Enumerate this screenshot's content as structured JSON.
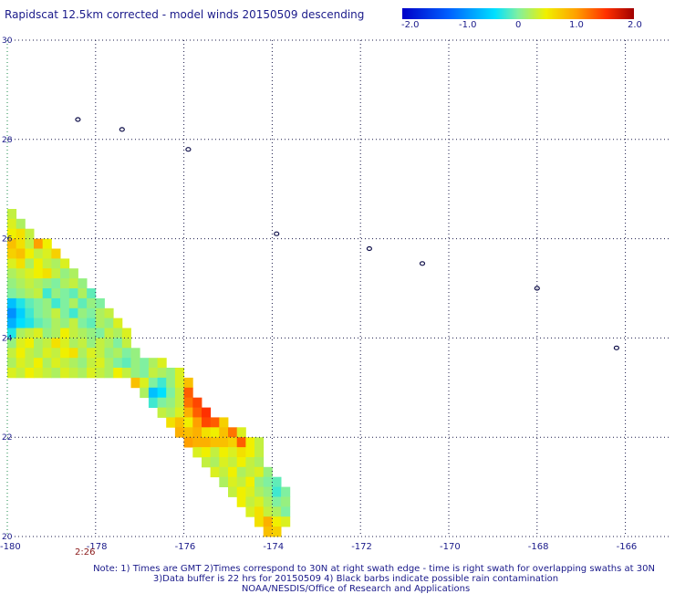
{
  "title": "Rapidscat 12.5km corrected - model winds 20150509 descending",
  "colorbar": {
    "tick_labels": [
      "-2.0",
      "-1.0",
      "0",
      "1.0",
      "2.0"
    ],
    "tick_values": [
      -2.0,
      -1.0,
      0,
      1.0,
      2.0
    ],
    "min": -2.0,
    "max": 2.0,
    "colors": [
      "#0000c8",
      "#0060ff",
      "#00d8ff",
      "#40f0c0",
      "#a8f060",
      "#f0f000",
      "#ffa000",
      "#ff3000",
      "#a00000"
    ]
  },
  "time_label": "2:26",
  "notes": [
    "Note: 1) Times are GMT 2)Times correspond to 30N at right swath edge - time is right swath for overlapping swaths at 30N",
    "3)Data buffer is 22 hrs for 20150509 4) Black barbs indicate possible rain contamination",
    "NOAA/NESDIS/Office of Research and Applications"
  ],
  "chart_data": {
    "type": "heatmap",
    "x_axis": {
      "range": [
        -180,
        -165
      ],
      "tick_labels": [
        "-180",
        "-178",
        "-176",
        "-174",
        "-172",
        "-170",
        "-168",
        "-166"
      ],
      "ticks": [
        -180,
        -178,
        -176,
        -174,
        -172,
        -170,
        -168,
        -166
      ]
    },
    "y_axis": {
      "range": [
        20,
        30
      ],
      "tick_labels": [
        "20",
        "22",
        "24",
        "26",
        "28",
        "30"
      ],
      "ticks": [
        20,
        22,
        24,
        26,
        28,
        30
      ]
    },
    "grid": "dotted",
    "cell_size_deg": 0.2,
    "swath_rows": [
      {
        "lat": 26.4,
        "lon_start": -180.0,
        "values": [
          0.3
        ]
      },
      {
        "lat": 26.2,
        "lon_start": -180.0,
        "values": [
          0.4,
          0.2
        ]
      },
      {
        "lat": 26.0,
        "lon_start": -180.0,
        "values": [
          0.5,
          0.6,
          0.3
        ]
      },
      {
        "lat": 25.8,
        "lon_start": -180.0,
        "values": [
          0.8,
          0.6,
          0.3,
          1.0,
          0.5
        ]
      },
      {
        "lat": 25.6,
        "lon_start": -180.0,
        "values": [
          0.7,
          0.8,
          0.5,
          0.3,
          0.4,
          0.7
        ]
      },
      {
        "lat": 25.4,
        "lon_start": -180.0,
        "values": [
          0.4,
          0.6,
          0.2,
          0.5,
          0.3,
          0.2,
          0.4
        ]
      },
      {
        "lat": 25.2,
        "lon_start": -180.0,
        "values": [
          0.2,
          0.3,
          0.4,
          0.5,
          0.6,
          0.3,
          0.1,
          0.2
        ]
      },
      {
        "lat": 25.0,
        "lon_start": -180.0,
        "values": [
          0.1,
          0.2,
          0.3,
          0.2,
          0.1,
          0.0,
          0.2,
          0.3,
          0.1
        ]
      },
      {
        "lat": 24.8,
        "lon_start": -180.0,
        "values": [
          0.0,
          0.1,
          0.2,
          0.3,
          -0.2,
          0.1,
          0.0,
          -0.1,
          0.2,
          -0.1
        ]
      },
      {
        "lat": 24.6,
        "lon_start": -180.0,
        "values": [
          -0.6,
          -0.3,
          -0.1,
          0.0,
          0.1,
          -0.2,
          0.0,
          0.2,
          -0.1,
          0.1,
          0.0
        ]
      },
      {
        "lat": 24.4,
        "lon_start": -180.0,
        "values": [
          -0.9,
          -0.5,
          -0.2,
          0.0,
          0.1,
          0.3,
          0.0,
          -0.2,
          0.1,
          0.0,
          0.2,
          0.3
        ]
      },
      {
        "lat": 24.2,
        "lon_start": -180.0,
        "values": [
          -0.7,
          -0.4,
          -0.3,
          -0.1,
          0.0,
          0.2,
          0.1,
          0.3,
          0.0,
          -0.1,
          0.2,
          0.1,
          0.4
        ]
      },
      {
        "lat": 24.0,
        "lon_start": -180.0,
        "values": [
          -0.3,
          0.2,
          0.3,
          0.4,
          0.1,
          0.2,
          0.5,
          0.3,
          0.2,
          0.1,
          0.0,
          0.3,
          0.2,
          0.4
        ]
      },
      {
        "lat": 23.8,
        "lon_start": -180.0,
        "values": [
          0.1,
          0.4,
          0.5,
          0.2,
          0.3,
          0.6,
          0.4,
          0.2,
          0.3,
          0.1,
          0.3,
          0.2,
          0.0,
          0.3
        ]
      },
      {
        "lat": 23.6,
        "lon_start": -180.0,
        "values": [
          0.3,
          0.5,
          0.3,
          0.2,
          0.4,
          0.3,
          0.5,
          0.6,
          0.2,
          0.4,
          0.3,
          0.1,
          0.2,
          0.0,
          0.1
        ]
      },
      {
        "lat": 23.4,
        "lon_start": -180.0,
        "values": [
          0.2,
          0.4,
          0.3,
          0.5,
          0.2,
          0.4,
          0.3,
          0.2,
          0.1,
          0.3,
          0.4,
          0.2,
          0.0,
          -0.1,
          0.1,
          0.0,
          0.2,
          0.4
        ]
      },
      {
        "lat": 23.2,
        "lon_start": -180.0,
        "values": [
          0.4,
          0.3,
          0.5,
          0.4,
          0.3,
          0.2,
          0.4,
          0.3,
          0.2,
          0.4,
          0.3,
          0.2,
          0.5,
          0.3,
          0.1,
          0.0,
          0.3,
          0.2,
          0.1,
          0.4
        ]
      },
      {
        "lat": 23.0,
        "lon_start": -177.2,
        "values": [
          0.8,
          0.4,
          0.0,
          -0.2,
          0.1,
          0.4,
          0.8
        ]
      },
      {
        "lat": 22.8,
        "lon_start": -177.0,
        "values": [
          0.2,
          -0.6,
          -0.4,
          0.0,
          0.3,
          1.3
        ]
      },
      {
        "lat": 22.6,
        "lon_start": -176.8,
        "values": [
          -0.2,
          0.0,
          0.1,
          0.3,
          1.2,
          1.4
        ]
      },
      {
        "lat": 22.4,
        "lon_start": -176.6,
        "values": [
          0.3,
          0.2,
          0.4,
          0.9,
          1.3,
          1.5
        ]
      },
      {
        "lat": 22.2,
        "lon_start": -176.4,
        "values": [
          0.6,
          0.8,
          0.5,
          1.0,
          1.4,
          1.3,
          0.7
        ]
      },
      {
        "lat": 22.0,
        "lon_start": -176.2,
        "values": [
          0.9,
          0.8,
          0.9,
          0.6,
          0.5,
          0.8,
          1.2,
          0.4
        ]
      },
      {
        "lat": 21.8,
        "lon_start": -176.0,
        "values": [
          1.0,
          0.9,
          0.9,
          0.8,
          0.8,
          0.7,
          1.3,
          0.5,
          0.3
        ]
      },
      {
        "lat": 21.6,
        "lon_start": -175.8,
        "values": [
          0.4,
          0.5,
          0.3,
          0.5,
          0.4,
          0.6,
          0.5,
          0.3
        ]
      },
      {
        "lat": 21.4,
        "lon_start": -175.6,
        "values": [
          0.3,
          0.2,
          0.4,
          0.3,
          0.5,
          0.3,
          0.2
        ]
      },
      {
        "lat": 21.2,
        "lon_start": -175.4,
        "values": [
          0.4,
          0.3,
          0.5,
          0.2,
          0.3,
          0.4,
          0.1
        ]
      },
      {
        "lat": 21.0,
        "lon_start": -175.2,
        "values": [
          0.2,
          0.4,
          0.3,
          0.5,
          0.1,
          0.0,
          -0.1
        ]
      },
      {
        "lat": 20.8,
        "lon_start": -175.0,
        "values": [
          0.3,
          0.5,
          0.4,
          0.2,
          0.1,
          -0.2,
          0.0
        ]
      },
      {
        "lat": 20.6,
        "lon_start": -174.8,
        "values": [
          0.5,
          0.3,
          0.4,
          0.2,
          0.0,
          0.1
        ]
      },
      {
        "lat": 20.4,
        "lon_start": -174.6,
        "values": [
          0.4,
          0.6,
          0.3,
          0.2,
          0.0
        ]
      },
      {
        "lat": 20.2,
        "lon_start": -174.4,
        "values": [
          0.6,
          0.9,
          0.5,
          0.4
        ]
      },
      {
        "lat": 20.0,
        "lon_start": -174.2,
        "values": [
          0.8,
          0.7
        ]
      }
    ],
    "islands": [
      {
        "lon": -178.4,
        "lat": 28.4
      },
      {
        "lon": -177.4,
        "lat": 28.2
      },
      {
        "lon": -175.9,
        "lat": 27.8
      },
      {
        "lon": -173.9,
        "lat": 26.1
      },
      {
        "lon": -171.8,
        "lat": 25.8
      },
      {
        "lon": -170.6,
        "lat": 25.5
      },
      {
        "lon": -168.0,
        "lat": 25.0
      },
      {
        "lon": -166.2,
        "lat": 23.8
      }
    ]
  }
}
